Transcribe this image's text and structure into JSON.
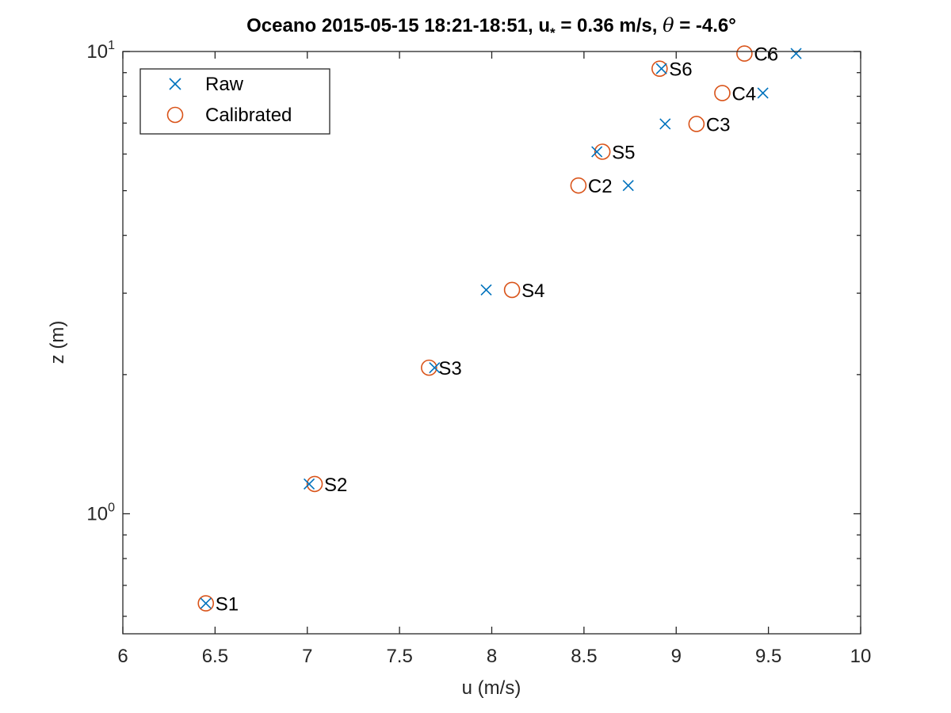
{
  "chart_data": {
    "type": "scatter",
    "title": {
      "prefix": "Oceano 2015-05-15 18:21-18:51, u",
      "subscript": "*",
      "middle": " = 0.36 m/s, ",
      "theta": "θ",
      "suffix": " = -4.6°"
    },
    "xlabel": "u (m/s)",
    "ylabel": "z (m)",
    "x_scale": "linear",
    "y_scale": "log",
    "xlim": [
      6,
      10
    ],
    "ylim": [
      0.55,
      10
    ],
    "x_ticks": [
      6,
      6.5,
      7,
      7.5,
      8,
      8.5,
      9,
      9.5,
      10
    ],
    "x_tick_labels": [
      "6",
      "6.5",
      "7",
      "7.5",
      "8",
      "8.5",
      "9",
      "9.5",
      "10"
    ],
    "y_ticks": [
      {
        "value": 1,
        "base": "10",
        "exp": "0"
      },
      {
        "value": 10,
        "base": "10",
        "exp": "1"
      }
    ],
    "y_minor_ticks": [
      0.6,
      0.7,
      0.8,
      0.9,
      2,
      3,
      4,
      5,
      6,
      7,
      8,
      9
    ],
    "grid": false,
    "legend_position": "top-left",
    "series": [
      {
        "name": "Raw",
        "marker": "x",
        "color": "#0072BD",
        "points": [
          {
            "x": 6.45,
            "y": 0.64
          },
          {
            "x": 7.01,
            "y": 1.16
          },
          {
            "x": 7.69,
            "y": 2.07
          },
          {
            "x": 7.97,
            "y": 3.05
          },
          {
            "x": 8.57,
            "y": 6.07
          },
          {
            "x": 8.74,
            "y": 5.13
          },
          {
            "x": 8.92,
            "y": 9.18
          },
          {
            "x": 8.94,
            "y": 6.97
          },
          {
            "x": 9.47,
            "y": 8.13
          },
          {
            "x": 9.65,
            "y": 9.9
          }
        ]
      },
      {
        "name": "Calibrated",
        "marker": "o",
        "color": "#D95319",
        "points": [
          {
            "x": 6.45,
            "y": 0.64,
            "label": "S1"
          },
          {
            "x": 7.04,
            "y": 1.16,
            "label": "S2"
          },
          {
            "x": 7.66,
            "y": 2.07,
            "label": "S3"
          },
          {
            "x": 8.11,
            "y": 3.05,
            "label": "S4"
          },
          {
            "x": 8.6,
            "y": 6.07,
            "label": "S5"
          },
          {
            "x": 8.47,
            "y": 5.13,
            "label": "C2"
          },
          {
            "x": 8.91,
            "y": 9.18,
            "label": "S6"
          },
          {
            "x": 9.11,
            "y": 6.97,
            "label": "C3"
          },
          {
            "x": 9.25,
            "y": 8.13,
            "label": "C4"
          },
          {
            "x": 9.37,
            "y": 9.9,
            "label": "C6"
          }
        ]
      }
    ]
  }
}
